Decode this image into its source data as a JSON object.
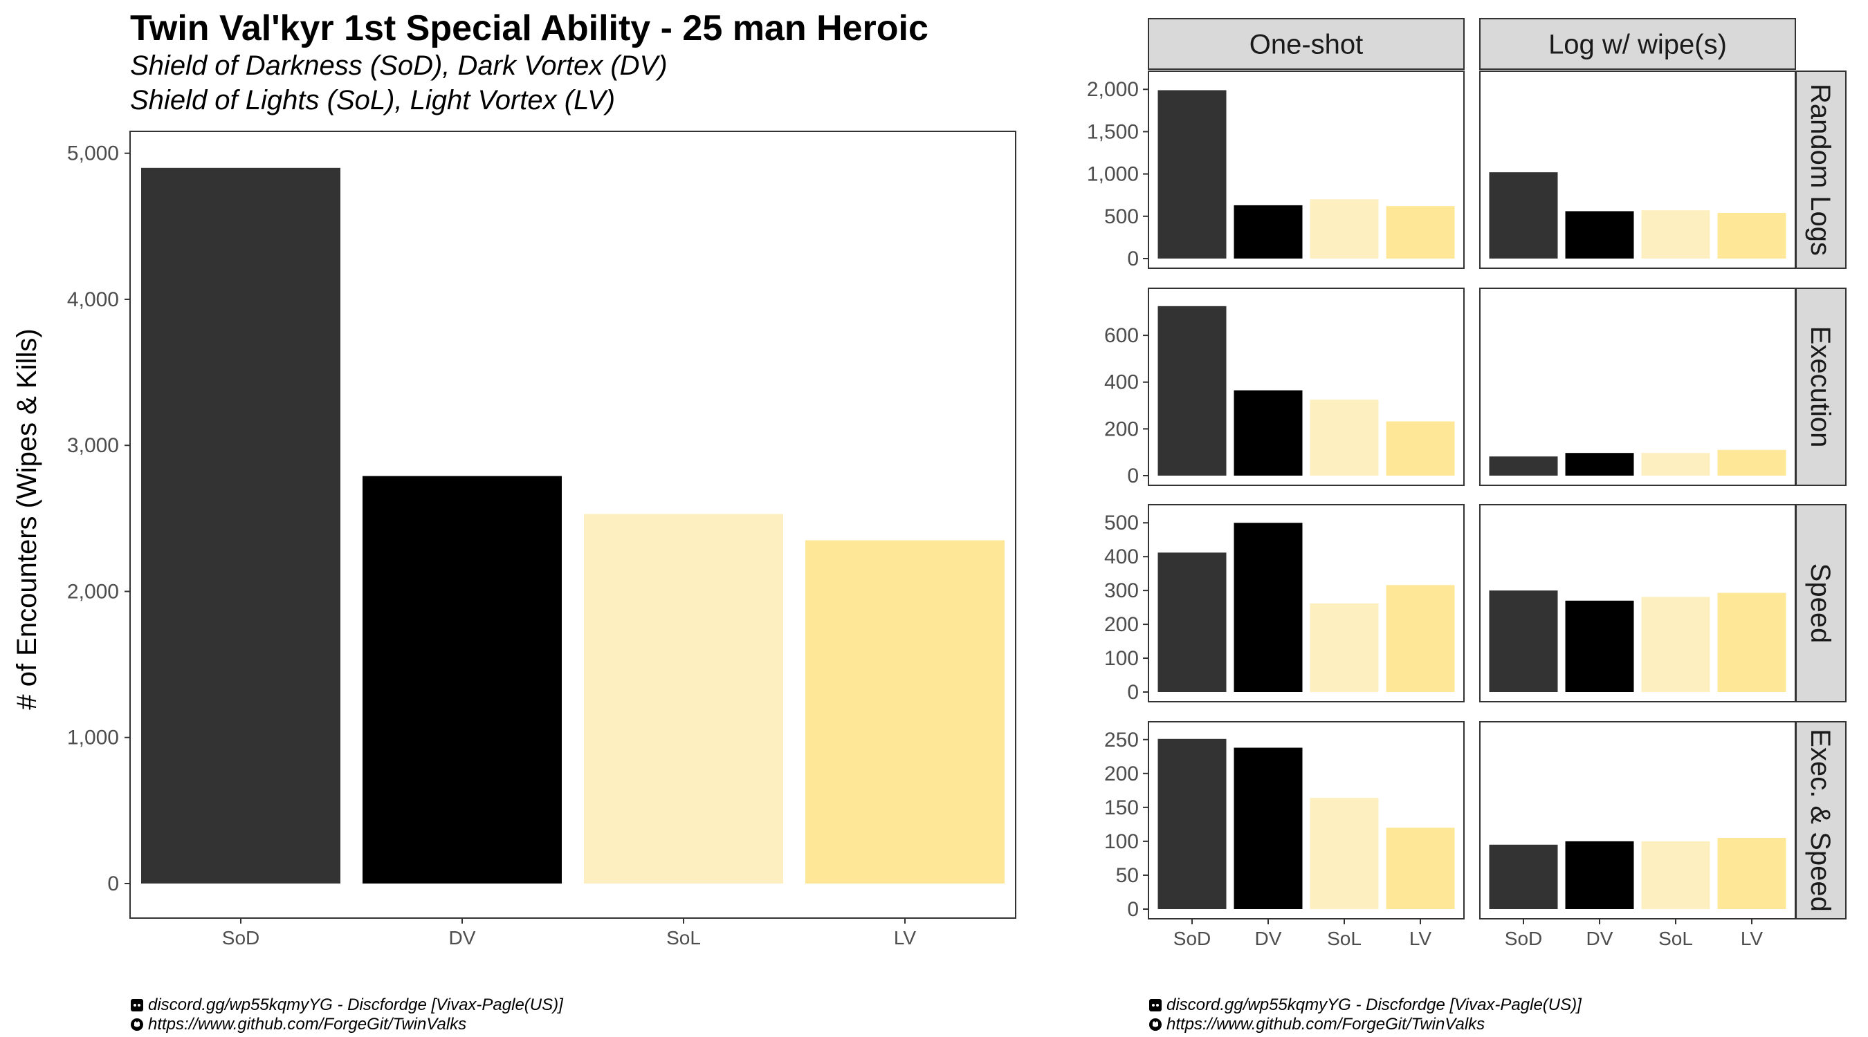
{
  "chart_data": [
    {
      "type": "bar",
      "title": "Twin Val'kyr 1st Special Ability - 25 man Heroic",
      "subtitle_lines": [
        "Shield of Darkness (SoD), Dark Vortex (DV)",
        "Shield of Lights (SoL), Light Vortex (LV)"
      ],
      "xlabel": "",
      "ylabel": "# of Encounters (Wipes & Kills)",
      "categories": [
        "SoD",
        "DV",
        "SoL",
        "LV"
      ],
      "values": [
        4900,
        2790,
        2530,
        2350
      ],
      "colors": [
        "#333333",
        "#000000",
        "#fdefbf",
        "#fee898"
      ],
      "ylim": [
        0,
        5150
      ],
      "yticks": [
        0,
        1000,
        2000,
        3000,
        4000,
        5000
      ],
      "ytick_labels": [
        "0",
        "1,000",
        "2,000",
        "3,000",
        "4,000",
        "5,000"
      ],
      "grid": false,
      "legend": "none"
    },
    {
      "type": "bar",
      "layout": "facet-grid",
      "categories": [
        "SoD",
        "DV",
        "SoL",
        "LV"
      ],
      "colors": [
        "#333333",
        "#000000",
        "#fdefbf",
        "#fee898"
      ],
      "columns": [
        "One-shot",
        "Log w/ wipe(s)"
      ],
      "rows": [
        {
          "label": "Random Logs",
          "ylim": [
            0,
            2100
          ],
          "yticks": [
            0,
            500,
            1000,
            1500,
            2000
          ],
          "ytick_labels": [
            "0",
            "500",
            "1,000",
            "1,500",
            "2,000"
          ],
          "panels": [
            [
              1990,
              630,
              700,
              620
            ],
            [
              1020,
              560,
              570,
              540
            ]
          ]
        },
        {
          "label": "Execution",
          "ylim": [
            0,
            760
          ],
          "yticks": [
            0,
            200,
            400,
            600
          ],
          "ytick_labels": [
            "0",
            "200",
            "400",
            "600"
          ],
          "panels": [
            [
              725,
              365,
              325,
              232
            ],
            [
              82,
              97,
              97,
              110
            ]
          ]
        },
        {
          "label": "Speed",
          "ylim": [
            0,
            525
          ],
          "yticks": [
            0,
            100,
            200,
            300,
            400,
            500
          ],
          "ytick_labels": [
            "0",
            "100",
            "200",
            "300",
            "400",
            "500"
          ],
          "panels": [
            [
              412,
              500,
              262,
              316
            ],
            [
              300,
              270,
              281,
              293
            ]
          ]
        },
        {
          "label": "Exec. & Speed",
          "ylim": [
            0,
            262
          ],
          "yticks": [
            0,
            50,
            100,
            150,
            200,
            250
          ],
          "ytick_labels": [
            "0",
            "50",
            "100",
            "150",
            "200",
            "250"
          ],
          "panels": [
            [
              251,
              238,
              164,
              120
            ],
            [
              95,
              100,
              100,
              105
            ]
          ]
        }
      ],
      "grid": false,
      "legend": "none"
    }
  ],
  "credits": {
    "discord_icon": "discord-icon",
    "github_icon": "github-icon",
    "discord_text": "discord.gg/wp55kqmyYG - Discfordge [Vivax-Pagle(US)]",
    "github_text": "https://www.github.com/ForgeGit/TwinValks"
  }
}
